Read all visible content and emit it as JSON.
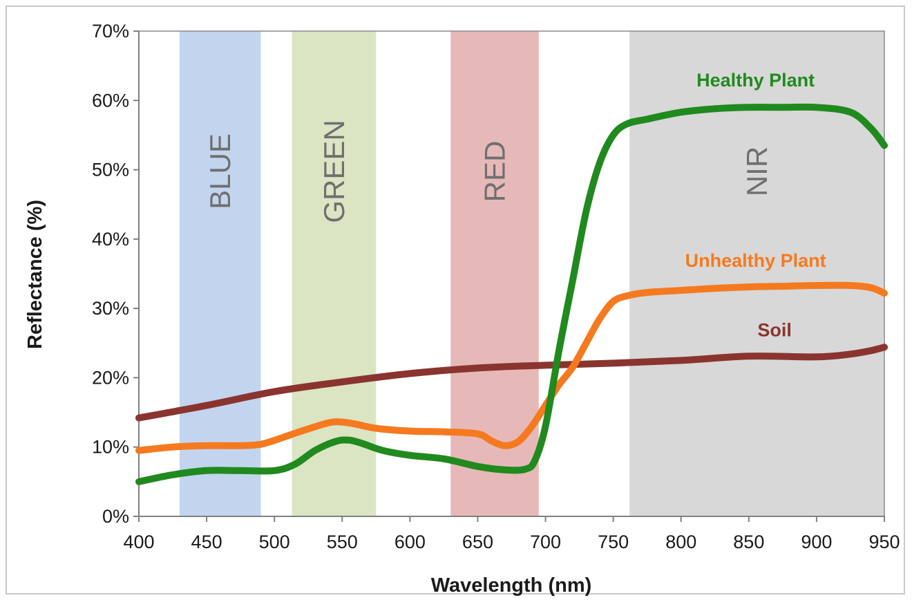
{
  "chart_data": {
    "type": "line",
    "title": "",
    "xlabel": "Wavelength (nm)",
    "ylabel": "Reflectance (%)",
    "xlim": [
      400,
      950
    ],
    "ylim": [
      0,
      70
    ],
    "x_ticks": [
      400,
      450,
      500,
      550,
      600,
      650,
      700,
      750,
      800,
      850,
      900,
      950
    ],
    "x_tick_labels": [
      "400",
      "450",
      "500",
      "550",
      "600",
      "650",
      "700",
      "750",
      "800",
      "850",
      "900",
      "950"
    ],
    "y_ticks": [
      0,
      10,
      20,
      30,
      40,
      50,
      60,
      70
    ],
    "y_tick_labels": [
      "0%",
      "10%",
      "20%",
      "30%",
      "40%",
      "50%",
      "60%",
      "70%"
    ],
    "grid": false,
    "bands": [
      {
        "label": "BLUE",
        "x0": 430,
        "x1": 490,
        "color": "#c3d5ee"
      },
      {
        "label": "GREEN",
        "x0": 513,
        "x1": 575,
        "color": "#dbe5c3"
      },
      {
        "label": "RED",
        "x0": 630,
        "x1": 695,
        "color": "#e6b9b8"
      },
      {
        "label": "NIR",
        "x0": 762,
        "x1": 950,
        "color": "#d8d8d8"
      }
    ],
    "series": [
      {
        "name": "Healthy Plant",
        "color": "#208a1e",
        "x": [
          400,
          425,
          450,
          475,
          500,
          515,
          530,
          545,
          555,
          565,
          580,
          600,
          625,
          650,
          670,
          685,
          692,
          700,
          710,
          720,
          730,
          740,
          750,
          760,
          775,
          800,
          825,
          850,
          875,
          900,
          925,
          940,
          950
        ],
        "y": [
          5,
          6,
          6.6,
          6.6,
          6.6,
          7.5,
          9.5,
          10.8,
          11,
          10.5,
          9.5,
          8.8,
          8.3,
          7.2,
          6.7,
          6.8,
          8,
          13,
          24,
          34,
          44,
          51,
          55,
          56.6,
          57.3,
          58.3,
          58.8,
          59,
          59,
          59,
          58.3,
          56,
          53.5
        ]
      },
      {
        "name": "Unhealthy Plant",
        "color": "#f57a1f",
        "x": [
          400,
          425,
          450,
          475,
          490,
          505,
          520,
          540,
          550,
          560,
          575,
          600,
          625,
          650,
          660,
          670,
          680,
          690,
          700,
          710,
          720,
          730,
          740,
          750,
          760,
          775,
          800,
          825,
          850,
          875,
          900,
          925,
          940,
          950
        ],
        "y": [
          9.5,
          10,
          10.2,
          10.2,
          10.4,
          11.3,
          12.3,
          13.5,
          13.6,
          13.3,
          12.7,
          12.3,
          12.2,
          11.9,
          10.9,
          10.2,
          10.8,
          13,
          16,
          19,
          21.5,
          25,
          28.5,
          31,
          31.8,
          32.3,
          32.6,
          32.9,
          33.1,
          33.2,
          33.3,
          33.3,
          33,
          32.2
        ]
      },
      {
        "name": "Soil",
        "color": "#8a3430",
        "x": [
          400,
          450,
          500,
          550,
          600,
          650,
          700,
          750,
          800,
          850,
          900,
          925,
          940,
          950
        ],
        "y": [
          14.2,
          16,
          18,
          19.4,
          20.6,
          21.4,
          21.8,
          22.1,
          22.5,
          23.1,
          23,
          23.4,
          23.9,
          24.4
        ]
      }
    ],
    "annotations": [
      {
        "text": "Healthy Plant",
        "x": 855,
        "y": 62,
        "color": "#208a1e"
      },
      {
        "text": "Unhealthy Plant",
        "x": 855,
        "y": 36,
        "color": "#f57a1f"
      },
      {
        "text": "Soil",
        "x": 869,
        "y": 26,
        "color": "#8a3430"
      }
    ]
  }
}
